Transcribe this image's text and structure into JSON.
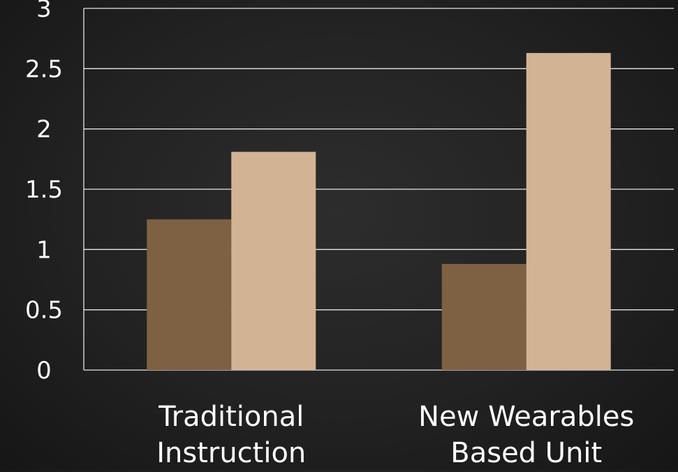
{
  "chart_data": {
    "type": "bar",
    "categories": [
      "Traditional Instruction",
      "New Wearables Based Unit"
    ],
    "category_lines": [
      [
        "Traditional",
        "Instruction"
      ],
      [
        "New Wearables",
        "Based Unit"
      ]
    ],
    "series": [
      {
        "color": "#7d6142",
        "values": [
          1.25,
          0.88
        ]
      },
      {
        "color": "#d2b393",
        "values": [
          1.81,
          2.63
        ]
      }
    ],
    "ylim": [
      0,
      3
    ],
    "yticks": [
      "0",
      "0.5",
      "1",
      "1.5",
      "2",
      "2.5",
      "3"
    ],
    "grid": true,
    "legend": "none",
    "title": "",
    "xlabel": "",
    "ylabel": ""
  }
}
